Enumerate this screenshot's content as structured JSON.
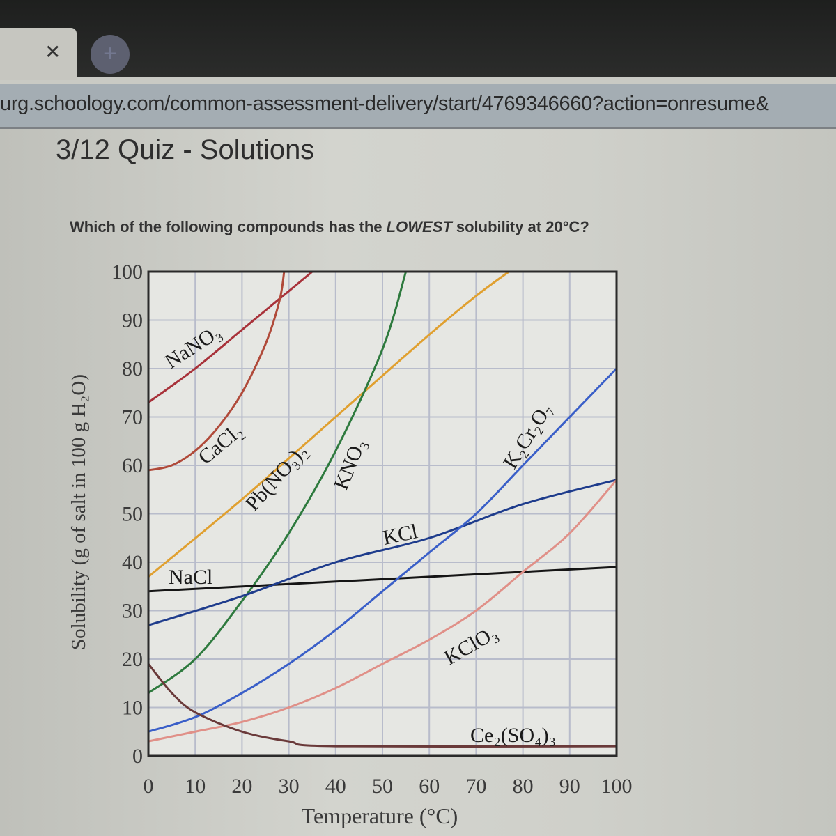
{
  "browser": {
    "tab_close_icon": "close-icon",
    "new_tab_icon": "plus-icon",
    "url": "urg.schoology.com/common-assessment-delivery/start/4769346660?action=onresume&"
  },
  "page": {
    "title": "3/12 Quiz - Solutions",
    "question_pre": "Which of the following compounds has the ",
    "question_em": "LOWEST",
    "question_post": " solubility at 20°C?"
  },
  "chart_data": {
    "type": "line",
    "title": "",
    "xlabel": "Temperature (°C)",
    "ylabel": "Solubility (g of salt in 100 g H₂O)",
    "xlim": [
      0,
      100
    ],
    "ylim": [
      0,
      100
    ],
    "xticks": [
      "0",
      "10",
      "20",
      "30",
      "40",
      "50",
      "60",
      "70",
      "80",
      "90",
      "100"
    ],
    "yticks": [
      "0",
      "10",
      "20",
      "30",
      "40",
      "50",
      "60",
      "70",
      "80",
      "90",
      "100"
    ],
    "grid": true,
    "legend": "inline labels",
    "series": [
      {
        "name": "NaNO₃",
        "color": "#a8323a",
        "x": [
          0,
          10,
          20,
          30,
          35
        ],
        "y": [
          73,
          80,
          88,
          96,
          100
        ]
      },
      {
        "name": "CaCl₂",
        "color": "#b04a3a",
        "x": [
          0,
          5,
          10,
          15,
          20,
          25,
          28,
          29
        ],
        "y": [
          59,
          60,
          63,
          68,
          75,
          85,
          94,
          100
        ]
      },
      {
        "name": "Pb(NO₃)₂",
        "color": "#e0a030",
        "x": [
          0,
          20,
          40,
          60,
          70,
          77
        ],
        "y": [
          37,
          53,
          70,
          87,
          95,
          100
        ]
      },
      {
        "name": "KNO₃",
        "color": "#2e7a3e",
        "x": [
          0,
          10,
          20,
          30,
          40,
          50,
          55
        ],
        "y": [
          13,
          20,
          32,
          46,
          63,
          84,
          100
        ]
      },
      {
        "name": "NaCl",
        "color": "#151515",
        "x": [
          0,
          100
        ],
        "y": [
          34,
          39
        ]
      },
      {
        "name": "KCl",
        "color": "#1e3c8c",
        "x": [
          0,
          20,
          40,
          60,
          80,
          100
        ],
        "y": [
          27,
          33,
          40,
          45,
          52,
          57
        ]
      },
      {
        "name": "K₂Cr₂O₇",
        "color": "#3a5fc8",
        "x": [
          0,
          10,
          20,
          30,
          40,
          50,
          60,
          70,
          80,
          90,
          100
        ],
        "y": [
          5,
          8,
          13,
          19,
          26,
          34,
          42,
          50,
          60,
          70,
          80
        ]
      },
      {
        "name": "KClO₃",
        "color": "#e09088",
        "x": [
          0,
          10,
          20,
          30,
          40,
          50,
          60,
          70,
          80,
          90,
          100
        ],
        "y": [
          3,
          5,
          7,
          10,
          14,
          19,
          24,
          30,
          38,
          46,
          57
        ]
      },
      {
        "name": "Ce₂(SO₄)₃",
        "color": "#6a3a3a",
        "x": [
          0,
          5,
          10,
          20,
          30,
          40,
          100
        ],
        "y": [
          19,
          13,
          9,
          5,
          3,
          2,
          2
        ]
      }
    ]
  }
}
